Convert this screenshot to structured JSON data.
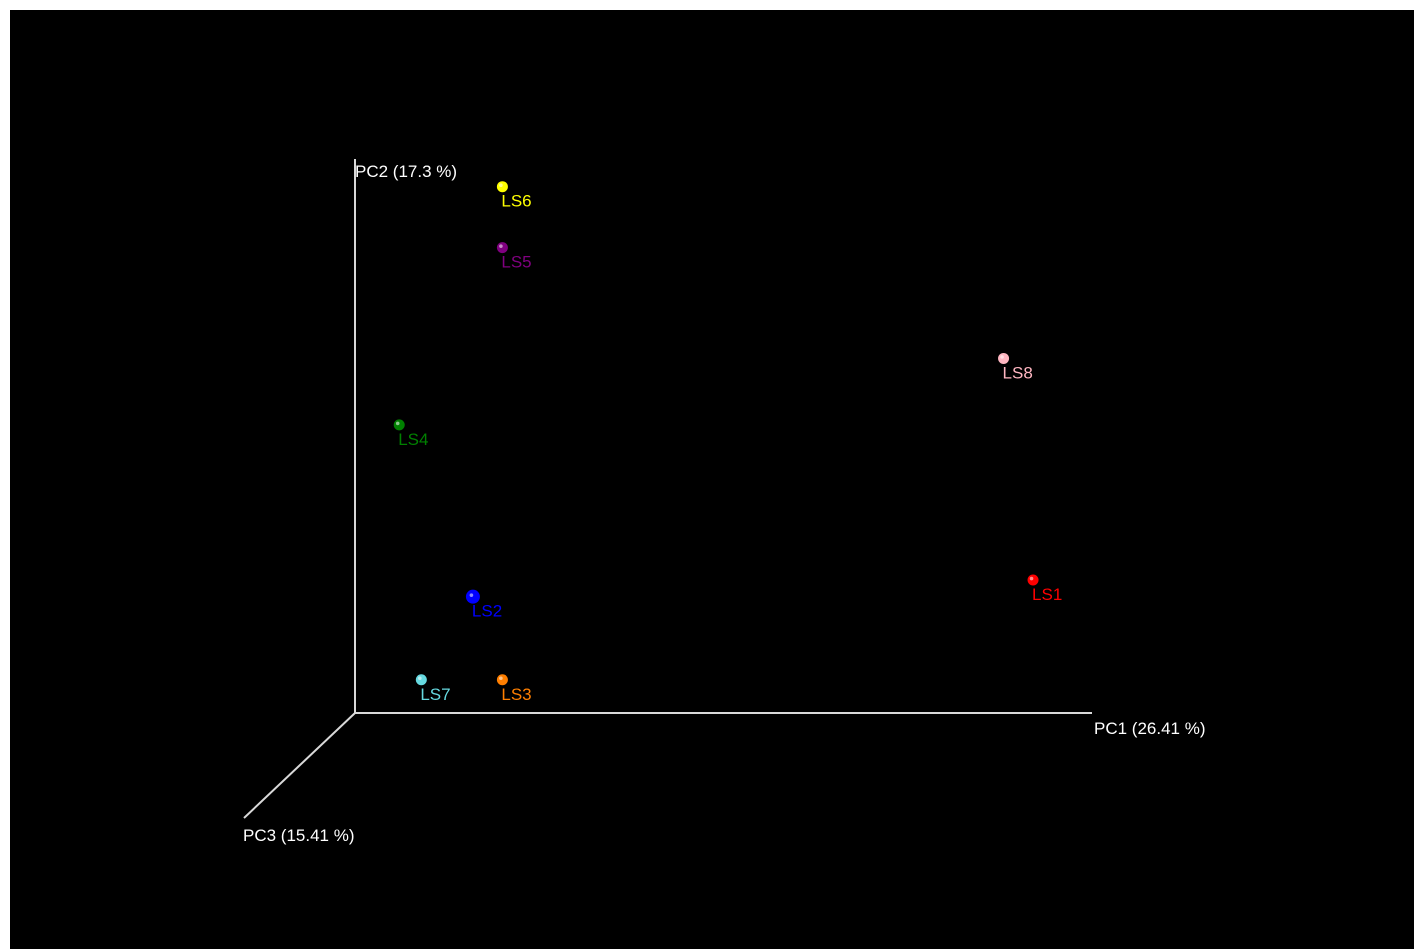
{
  "chart_data": {
    "type": "scatter",
    "dimensions": 3,
    "background": "#000000",
    "axis_color": "#d9d9d9",
    "axes": {
      "x": {
        "label": "PC1 (26.41 %)"
      },
      "y": {
        "label": "PC2 (17.3 %)"
      },
      "z": {
        "label": "PC3 (15.41 %)"
      }
    },
    "grid": false,
    "legend": "none",
    "points": [
      {
        "name": "LS1",
        "color": "#ff0000",
        "x": 0.92,
        "y": 0.24,
        "z": 0.0
      },
      {
        "name": "LS2",
        "color": "#0000ff",
        "x": 0.16,
        "y": 0.21,
        "z": 0.0
      },
      {
        "name": "LS3",
        "color": "#ff7f00",
        "x": 0.2,
        "y": 0.06,
        "z": 0.0
      },
      {
        "name": "LS4",
        "color": "#008000",
        "x": 0.06,
        "y": 0.52,
        "z": 0.0
      },
      {
        "name": "LS5",
        "color": "#800080",
        "x": 0.2,
        "y": 0.84,
        "z": 0.0
      },
      {
        "name": "LS6",
        "color": "#ffff00",
        "x": 0.2,
        "y": 0.95,
        "z": 0.0
      },
      {
        "name": "LS7",
        "color": "#66d9e0",
        "x": 0.09,
        "y": 0.06,
        "z": 0.0
      },
      {
        "name": "LS8",
        "color": "#ffb6c1",
        "x": 0.88,
        "y": 0.64,
        "z": 0.0
      }
    ]
  }
}
